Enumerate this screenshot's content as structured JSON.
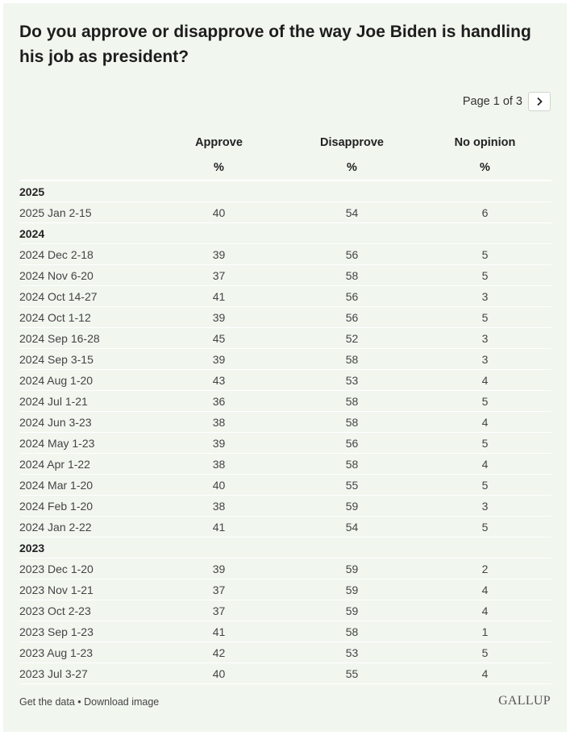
{
  "chart_data": {
    "type": "table",
    "title": "Do you approve or disapprove of the way Joe Biden is handling his job as president?",
    "columns": [
      "Approve",
      "Disapprove",
      "No opinion"
    ],
    "units": [
      "%",
      "%",
      "%"
    ],
    "groups": [
      {
        "year": "2025",
        "rows": [
          {
            "label": "2025 Jan 2-15",
            "values": [
              40,
              54,
              6
            ]
          }
        ]
      },
      {
        "year": "2024",
        "rows": [
          {
            "label": "2024 Dec 2-18",
            "values": [
              39,
              56,
              5
            ]
          },
          {
            "label": "2024 Nov 6-20",
            "values": [
              37,
              58,
              5
            ]
          },
          {
            "label": "2024 Oct 14-27",
            "values": [
              41,
              56,
              3
            ]
          },
          {
            "label": "2024 Oct 1-12",
            "values": [
              39,
              56,
              5
            ]
          },
          {
            "label": "2024 Sep 16-28",
            "values": [
              45,
              52,
              3
            ]
          },
          {
            "label": "2024 Sep 3-15",
            "values": [
              39,
              58,
              3
            ]
          },
          {
            "label": "2024 Aug 1-20",
            "values": [
              43,
              53,
              4
            ]
          },
          {
            "label": "2024 Jul 1-21",
            "values": [
              36,
              58,
              5
            ]
          },
          {
            "label": "2024 Jun 3-23",
            "values": [
              38,
              58,
              4
            ]
          },
          {
            "label": "2024 May 1-23",
            "values": [
              39,
              56,
              5
            ]
          },
          {
            "label": "2024 Apr 1-22",
            "values": [
              38,
              58,
              4
            ]
          },
          {
            "label": "2024 Mar 1-20",
            "values": [
              40,
              55,
              5
            ]
          },
          {
            "label": "2024 Feb 1-20",
            "values": [
              38,
              59,
              3
            ]
          },
          {
            "label": "2024 Jan 2-22",
            "values": [
              41,
              54,
              5
            ]
          }
        ]
      },
      {
        "year": "2023",
        "rows": [
          {
            "label": "2023 Dec 1-20",
            "values": [
              39,
              59,
              2
            ]
          },
          {
            "label": "2023 Nov 1-21",
            "values": [
              37,
              59,
              4
            ]
          },
          {
            "label": "2023 Oct 2-23",
            "values": [
              37,
              59,
              4
            ]
          },
          {
            "label": "2023 Sep 1-23",
            "values": [
              41,
              58,
              1
            ]
          },
          {
            "label": "2023 Aug 1-23",
            "values": [
              42,
              53,
              5
            ]
          },
          {
            "label": "2023 Jul 3-27",
            "values": [
              40,
              55,
              4
            ]
          }
        ]
      }
    ]
  },
  "pager": {
    "text": "Page 1 of 3",
    "next_icon": "chevron-right-icon"
  },
  "footer": {
    "get_data": "Get the data",
    "separator": " • ",
    "download": "Download image",
    "logo": "GALLUP"
  },
  "colors": {
    "background": "#f1f6ef",
    "divider": "#ffffff",
    "text": "#444444"
  }
}
